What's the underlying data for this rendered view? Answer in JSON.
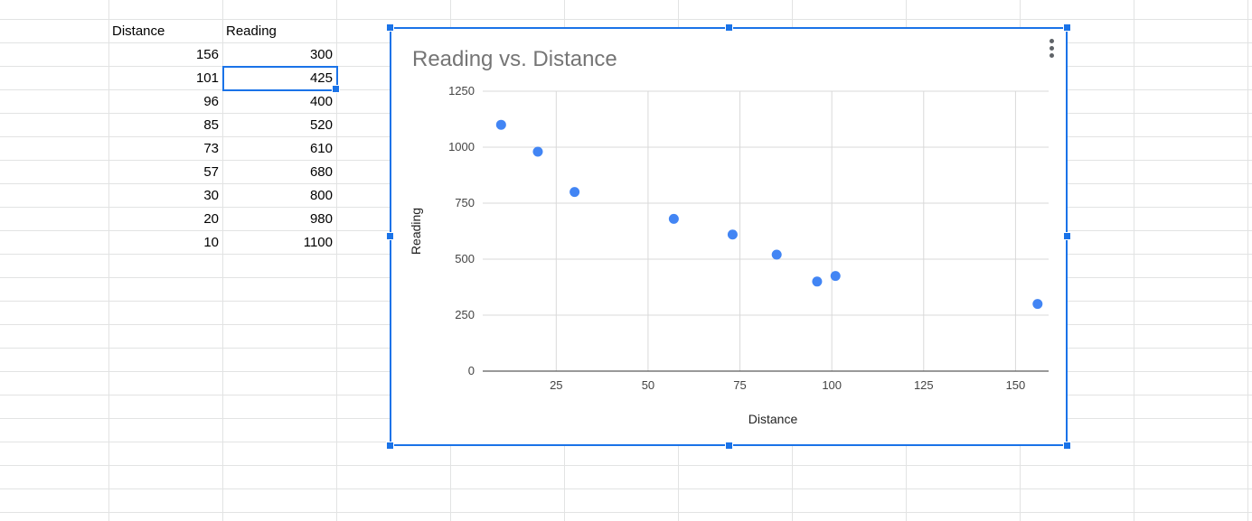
{
  "sheet": {
    "headers": {
      "col_b": "Distance",
      "col_c": "Reading"
    },
    "rows": [
      {
        "distance": "156",
        "reading": "300"
      },
      {
        "distance": "101",
        "reading": "425"
      },
      {
        "distance": "96",
        "reading": "400"
      },
      {
        "distance": "85",
        "reading": "520"
      },
      {
        "distance": "73",
        "reading": "610"
      },
      {
        "distance": "57",
        "reading": "680"
      },
      {
        "distance": "30",
        "reading": "800"
      },
      {
        "distance": "20",
        "reading": "980"
      },
      {
        "distance": "10",
        "reading": "1100"
      }
    ],
    "selected_cell_value": "425"
  },
  "chart": {
    "menu_icon": "more-vert-icon"
  },
  "colors": {
    "accent": "#1a73e8",
    "point": "#4285f4",
    "grid": "#d9d9d9",
    "title": "#757575",
    "axis_text": "#444444"
  },
  "chart_data": {
    "type": "scatter",
    "title": "Reading vs. Distance",
    "xlabel": "Distance",
    "ylabel": "Reading",
    "xlim": [
      5,
      159
    ],
    "ylim": [
      0,
      1250
    ],
    "x_ticks": [
      25,
      50,
      75,
      100,
      125,
      150
    ],
    "y_ticks": [
      0,
      250,
      500,
      750,
      1000,
      1250
    ],
    "grid": true,
    "legend": "none",
    "series": [
      {
        "x": [
          156,
          101,
          96,
          85,
          73,
          57,
          30,
          20,
          10
        ],
        "y": [
          300,
          425,
          400,
          520,
          610,
          680,
          800,
          980,
          1100
        ]
      }
    ]
  }
}
